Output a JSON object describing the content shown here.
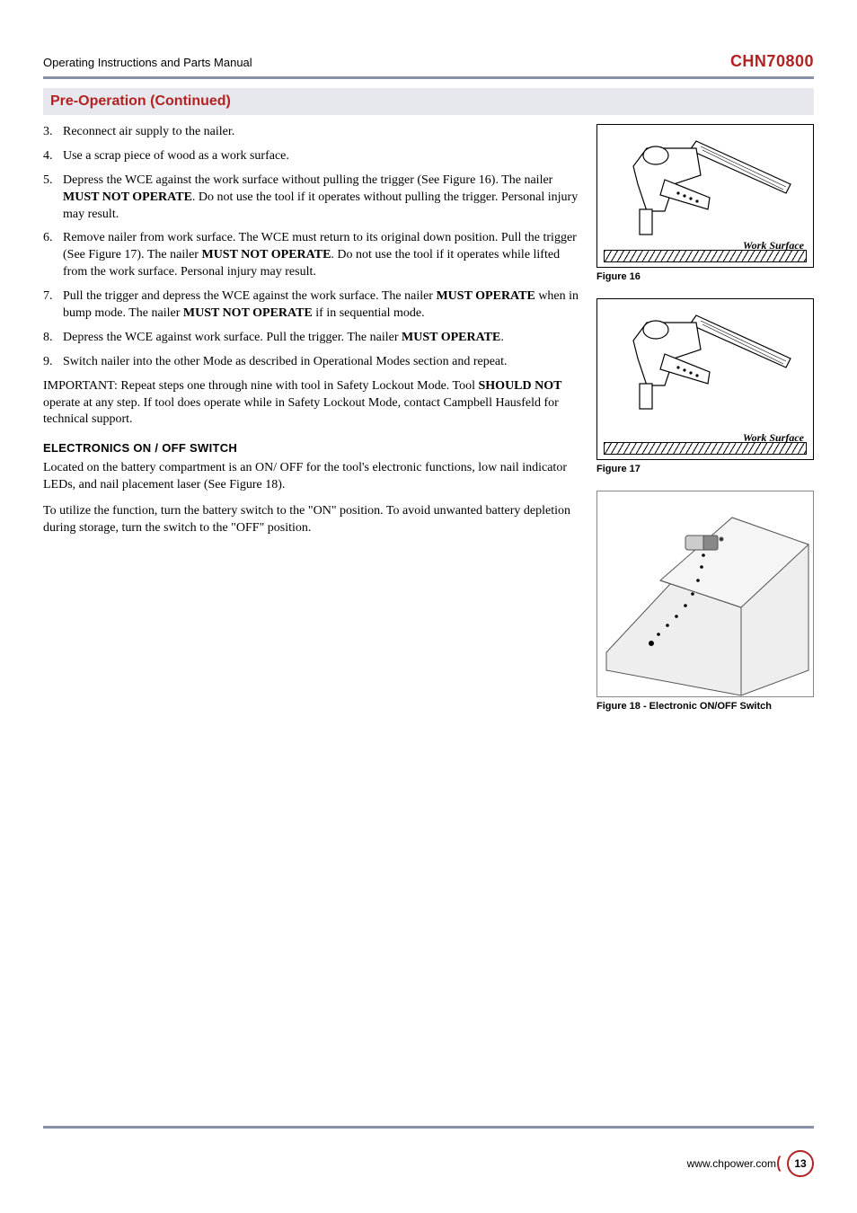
{
  "header": {
    "left": "Operating Instructions and Parts Manual",
    "right": "CHN70800"
  },
  "section_title": "Pre-Operation (Continued)",
  "list": [
    {
      "num": "3.",
      "text": "Reconnect air supply to the nailer."
    },
    {
      "num": "4.",
      "text": "Use a scrap piece of wood as a work surface."
    },
    {
      "num": "5.",
      "html": "Depress the WCE against the work surface without pulling the trigger (See Figure 16). The nailer <b>MUST NOT OPERATE</b>. Do not use the tool if it operates without pulling the trigger. Personal injury may result."
    },
    {
      "num": "6.",
      "html": "Remove nailer from work surface. The WCE must return to its original down position. Pull the trigger (See Figure 17). The nailer <b>MUST NOT OPERATE</b>. Do not use the tool if it operates while lifted from the work surface. Personal injury may result."
    },
    {
      "num": "7.",
      "html": "Pull the trigger and depress the WCE against the work surface. The nailer <b>MUST OPERATE</b> when in bump mode. The nailer <b>MUST NOT OPERATE</b> if in sequential mode."
    },
    {
      "num": "8.",
      "html": "Depress the WCE against work surface. Pull the trigger. The nailer <b>MUST OPERATE</b>."
    },
    {
      "num": "9.",
      "text": "Switch nailer into the other Mode as described in Operational Modes section and repeat."
    }
  ],
  "important_html": "IMPORTANT: Repeat steps one through nine with tool in Safety Lockout Mode. Tool <b>SHOULD NOT</b> operate at any step. If tool does operate while in Safety Lockout Mode, contact Campbell Hausfeld for technical support.",
  "subhead": "ELECTRONICS ON / OFF SWITCH",
  "paras": [
    "Located on the battery compartment is an ON/ OFF for the tool's electronic functions, low nail indicator LEDs, and nail placement laser (See Figure 18).",
    "To utilize the function, turn the battery switch to the \"ON\" position. To avoid unwanted battery depletion during storage, turn the switch to the \"OFF\" position."
  ],
  "figures": {
    "fig16": {
      "caption": "Figure 16",
      "label": "Work Surface"
    },
    "fig17": {
      "caption": "Figure 17",
      "label": "Work Surface"
    },
    "fig18": {
      "caption": "Figure 18 - Electronic ON/OFF Switch"
    }
  },
  "footer": {
    "url": "www.chpower.com",
    "page": "13"
  },
  "colors": {
    "accent": "#b22222",
    "rule": "#8a90a8",
    "section_bg": "#e6e8ed"
  }
}
